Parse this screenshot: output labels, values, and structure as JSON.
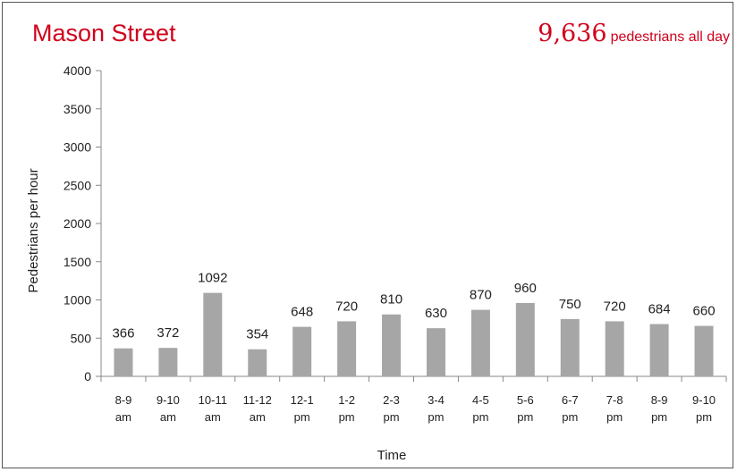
{
  "header": {
    "title": "Mason Street",
    "total_value": "9,636",
    "total_label": "pedestrians all day"
  },
  "colors": {
    "accent": "#d0021b",
    "bar": "#a6a6a6",
    "axis": "#888888"
  },
  "chart_data": {
    "type": "bar",
    "title": "Mason Street",
    "xlabel": "Time",
    "ylabel": "Pedestrians per hour",
    "ylim": [
      0,
      4000
    ],
    "yticks": [
      0,
      500,
      1000,
      1500,
      2000,
      2500,
      3000,
      3500,
      4000
    ],
    "grid": false,
    "categories": [
      [
        "8-9",
        "am"
      ],
      [
        "9-10",
        "am"
      ],
      [
        "10-11",
        "am"
      ],
      [
        "11-12",
        "am"
      ],
      [
        "12-1",
        "pm"
      ],
      [
        "1-2",
        "pm"
      ],
      [
        "2-3",
        "pm"
      ],
      [
        "3-4",
        "pm"
      ],
      [
        "4-5",
        "pm"
      ],
      [
        "5-6",
        "pm"
      ],
      [
        "6-7",
        "pm"
      ],
      [
        "7-8",
        "pm"
      ],
      [
        "8-9",
        "pm"
      ],
      [
        "9-10",
        "pm"
      ]
    ],
    "values": [
      366,
      372,
      1092,
      354,
      648,
      720,
      810,
      630,
      870,
      960,
      750,
      720,
      684,
      660
    ],
    "data_labels": true
  }
}
